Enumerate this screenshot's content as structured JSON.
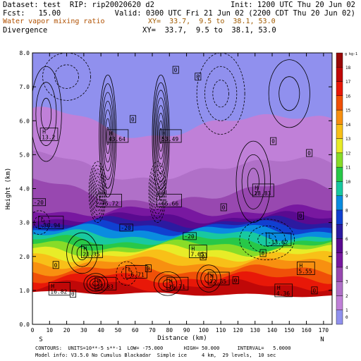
{
  "header": {
    "dataset": "Dataset: test  RIP: rip20020620 d2",
    "init": "Init: 1200 UTC Thu 20 Jun 02",
    "fcst": "Fcst:   15.00",
    "valid": "Valid: 0300 UTC Fri 21 Jun 02 (2200 CDT Thu 20 Jun 02)",
    "field1": "Water vapor mixing ratio",
    "xy1": "XY=  33.7,  9.5 to  38.1, 53.0",
    "field2": "Divergence",
    "xy2": "XY=  33.7,  9.5 to  38.1, 53.0"
  },
  "colors": {
    "field1": "#b05000",
    "xy1": "#a05a00"
  },
  "footer": {
    "contours": "CONTOURS:  UNITS=10**-5 s**-1  LOW= -75.000       HIGH= 50.000      INTERVAL=   5.0000",
    "model": "Model info: V3.5.0 No Cumulus Blackadar  Simple ice     4 km,  29 levels,  10 sec"
  },
  "chart_data": {
    "type": "heatmap",
    "xlabel": "Distance (km)",
    "ylabel": "Height (km)",
    "xlim": [
      0,
      175
    ],
    "ylim": [
      0,
      8.0
    ],
    "xticks": [
      0,
      10,
      20,
      30,
      40,
      50,
      60,
      70,
      80,
      90,
      100,
      110,
      120,
      130,
      140,
      150,
      160,
      170
    ],
    "yticks": [
      "0.0",
      "1.0",
      "2.0",
      "3.0",
      "4.0",
      "5.0",
      "6.0",
      "7.0",
      "8.0"
    ],
    "end_labels": {
      "left": "S",
      "right": "N"
    },
    "colorbar": {
      "unit": "g kg-1",
      "levels": [
        0,
        1,
        2,
        3,
        4,
        5,
        6,
        7,
        8,
        9,
        10,
        11,
        12,
        13,
        14,
        15,
        16,
        17,
        18
      ],
      "colors": [
        "#9090ee",
        "#c080d8",
        "#b070c8",
        "#9848b0",
        "#7818a0",
        "#5a0a90",
        "#2c1aa0",
        "#1040d0",
        "#0a8ce0",
        "#18c8a0",
        "#28c848",
        "#88dc28",
        "#e8ec28",
        "#f8c018",
        "#f89010",
        "#f05008",
        "#e81808",
        "#c00808",
        "#980808"
      ]
    },
    "highs": [
      {
        "x": 5,
        "y": 5.6,
        "label": "13.2"
      },
      {
        "x": 44,
        "y": 5.55,
        "label": "43.64"
      },
      {
        "x": 75,
        "y": 5.55,
        "label": "53.49"
      },
      {
        "x": 129,
        "y": 3.95,
        "label": "18.83"
      },
      {
        "x": 29,
        "y": 2.15,
        "label": "21.35"
      },
      {
        "x": 92,
        "y": 2.15,
        "label": "7.65"
      },
      {
        "x": 103,
        "y": 1.35,
        "label": "12.35"
      },
      {
        "x": 79,
        "y": 1.2,
        "label": "16.71"
      },
      {
        "x": 142,
        "y": 1.0,
        "label": "4.36"
      },
      {
        "x": 155,
        "y": 1.65,
        "label": "5.55"
      },
      {
        "x": 10,
        "y": 1.05,
        "label": "16.82"
      },
      {
        "x": 37,
        "y": 1.2,
        "label": "27.83"
      }
    ],
    "lows": [
      {
        "x": 38,
        "y": 3.65,
        "label": "-75.72"
      },
      {
        "x": 73,
        "y": 3.65,
        "label": "-65.66"
      },
      {
        "x": 4,
        "y": 3.0,
        "label": "-30.94"
      },
      {
        "x": 137,
        "y": 2.5,
        "label": "-13.62"
      },
      {
        "x": 55,
        "y": 1.55,
        "label": "-6.71"
      }
    ],
    "contour_labels": [
      {
        "x": 82,
        "y": 7.5,
        "label": "0"
      },
      {
        "x": 95,
        "y": 7.3,
        "label": "0"
      },
      {
        "x": 57,
        "y": 6.05,
        "label": "0"
      },
      {
        "x": 139,
        "y": 5.4,
        "label": "0"
      },
      {
        "x": 160,
        "y": 5.05,
        "label": "0"
      },
      {
        "x": 0,
        "y": 3.6,
        "label": "-20"
      },
      {
        "x": 88,
        "y": 2.6,
        "label": "-20"
      },
      {
        "x": 51,
        "y": 2.85,
        "label": "-20"
      },
      {
        "x": 155,
        "y": 3.2,
        "label": "0"
      },
      {
        "x": 110,
        "y": 3.45,
        "label": "0"
      },
      {
        "x": 12,
        "y": 1.75,
        "label": "0"
      },
      {
        "x": 66,
        "y": 1.65,
        "label": "0"
      },
      {
        "x": 98,
        "y": 2.0,
        "label": "0"
      },
      {
        "x": 117,
        "y": 1.3,
        "label": "0"
      },
      {
        "x": 133,
        "y": 2.1,
        "label": "0"
      },
      {
        "x": 163,
        "y": 1.0,
        "label": "0"
      },
      {
        "x": 22,
        "y": 0.9,
        "label": "0"
      }
    ]
  }
}
